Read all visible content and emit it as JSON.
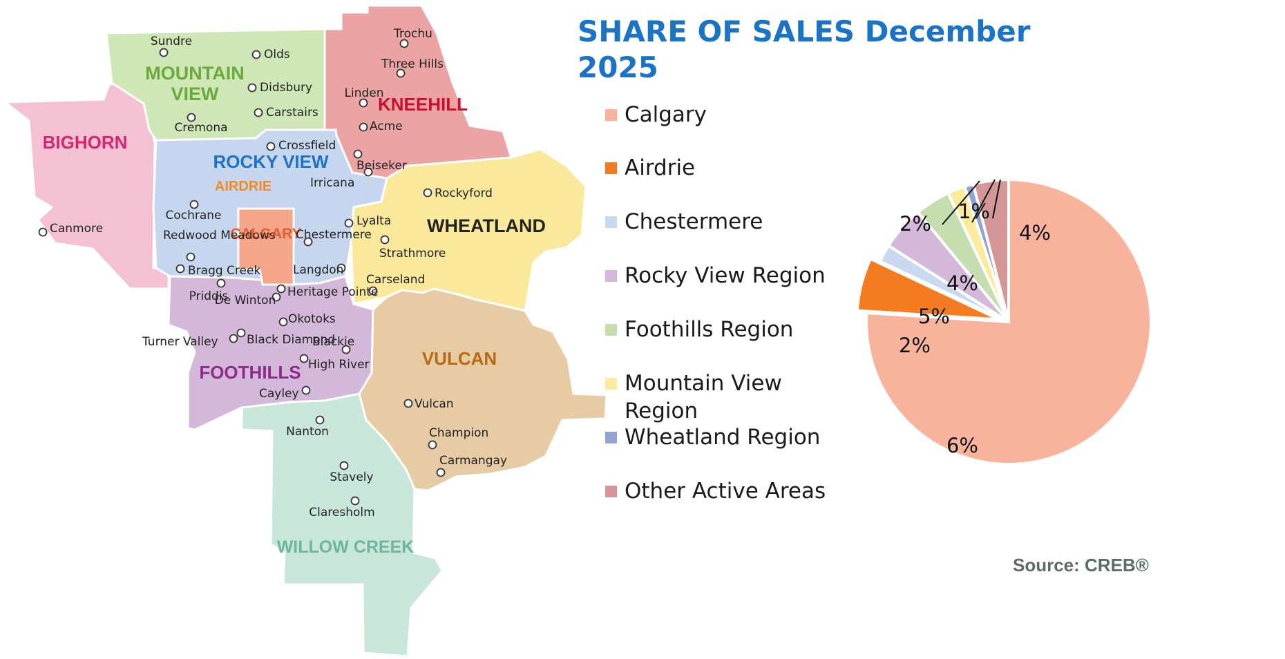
{
  "map": {
    "regions": [
      {
        "name": "BIGHORN",
        "fill": "#f4c1d3",
        "text_color": "#d6256f"
      },
      {
        "name": "MOUNTAIN VIEW",
        "lines": [
          "MOUNTAIN",
          "VIEW"
        ],
        "fill": "#cfe7b7",
        "text_color": "#6aaa3a"
      },
      {
        "name": "KNEEHILL",
        "fill": "#eba3a3",
        "text_color": "#c8102e"
      },
      {
        "name": "ROCKY VIEW",
        "fill": "#c7d6ef",
        "text_color": "#1a73c4"
      },
      {
        "name": "AIRDRIE",
        "fill": "#c7d6ef",
        "text_color": "#f08a24"
      },
      {
        "name": "CALGARY",
        "fill": "#f5a58a",
        "text_color": "#e85a2a"
      },
      {
        "name": "WHEATLAND",
        "fill": "#fbe99b",
        "text_color": "#222222"
      },
      {
        "name": "FOOTHILLS",
        "fill": "#d3b8d9",
        "text_color": "#8e2b8a"
      },
      {
        "name": "VULCAN",
        "fill": "#e6cba4",
        "text_color": "#b86a12"
      },
      {
        "name": "WILLOW CREEK",
        "fill": "#c9e6db",
        "text_color": "#6fb59b"
      }
    ],
    "towns": [
      "Sundre",
      "Olds",
      "Didsbury",
      "Carstairs",
      "Cremona",
      "Trochu",
      "Three Hills",
      "Linden",
      "Acme",
      "Canmore",
      "Crossfield",
      "Beiseker",
      "Irricana",
      "Cochrane",
      "Redwood Meadows",
      "Bragg Creek",
      "Chestermere",
      "Lyalta",
      "Rockyford",
      "Strathmore",
      "Langdon",
      "Carseland",
      "Priddis",
      "De Winton",
      "Heritage Pointe",
      "Okotoks",
      "Turner Valley",
      "Black Diamond",
      "Blackie",
      "High River",
      "Cayley",
      "Vulcan",
      "Champion",
      "Carmangay",
      "Nanton",
      "Stavely",
      "Claresholm"
    ]
  },
  "chart_data": {
    "type": "pie",
    "title": "SHARE OF SALES December 2025",
    "slices": [
      {
        "name": "Calgary",
        "value": 76,
        "label": "76%",
        "color": "#f7b39c"
      },
      {
        "name": "Airdrie",
        "value": 6,
        "label": "6%",
        "color": "#f47b20"
      },
      {
        "name": "Chestermere",
        "value": 2,
        "label": "2%",
        "color": "#c9daf0"
      },
      {
        "name": "Rocky View Region",
        "value": 5,
        "label": "5%",
        "color": "#d3b8da"
      },
      {
        "name": "Foothills Region",
        "value": 4,
        "label": "4%",
        "color": "#c6ddb0"
      },
      {
        "name": "Mountain View Region",
        "value": 2,
        "label": "2%",
        "color": "#fbeb9b"
      },
      {
        "name": "Wheatland Region",
        "value": 1,
        "label": "1%",
        "color": "#8fa4d0"
      },
      {
        "name": "Other Active Areas",
        "value": 4,
        "label": "4%",
        "color": "#d49696"
      }
    ],
    "legend_placement": "left of pie",
    "source": "Source: CREB®"
  }
}
